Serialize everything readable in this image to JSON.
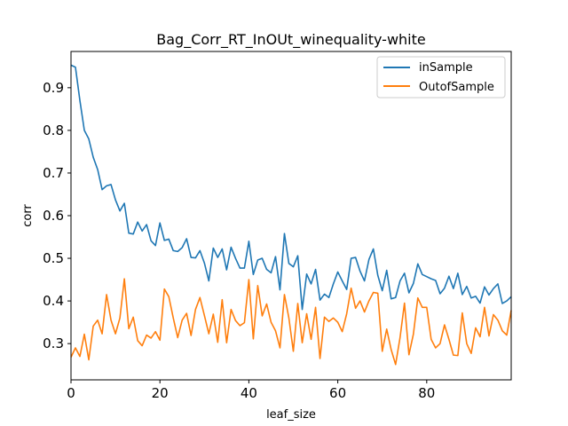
{
  "chart_data": {
    "type": "line",
    "title": "Bag_Corr_RT_InOUt_winequality-white",
    "xlabel": "leaf_size",
    "ylabel": "corr",
    "xlim": [
      0,
      99
    ],
    "ylim": [
      0.215,
      0.985
    ],
    "xticks": [
      0,
      20,
      40,
      60,
      80
    ],
    "yticks": [
      0.3,
      0.4,
      0.5,
      0.6,
      0.7,
      0.8,
      0.9
    ],
    "grid": false,
    "legend_position": "upper right",
    "series": [
      {
        "name": "inSample",
        "color": "#1f77b4",
        "values": [
          0.953,
          0.948,
          0.87,
          0.8,
          0.78,
          0.737,
          0.708,
          0.661,
          0.67,
          0.673,
          0.637,
          0.611,
          0.629,
          0.559,
          0.557,
          0.585,
          0.564,
          0.579,
          0.541,
          0.53,
          0.583,
          0.542,
          0.545,
          0.518,
          0.516,
          0.525,
          0.546,
          0.502,
          0.501,
          0.518,
          0.489,
          0.447,
          0.524,
          0.502,
          0.522,
          0.473,
          0.526,
          0.5,
          0.477,
          0.477,
          0.54,
          0.462,
          0.496,
          0.5,
          0.474,
          0.466,
          0.504,
          0.426,
          0.558,
          0.488,
          0.48,
          0.506,
          0.38,
          0.463,
          0.44,
          0.474,
          0.402,
          0.416,
          0.408,
          0.44,
          0.468,
          0.447,
          0.427,
          0.5,
          0.502,
          0.47,
          0.447,
          0.497,
          0.522,
          0.46,
          0.424,
          0.472,
          0.405,
          0.408,
          0.447,
          0.465,
          0.419,
          0.441,
          0.487,
          0.462,
          0.457,
          0.452,
          0.448,
          0.417,
          0.43,
          0.458,
          0.429,
          0.465,
          0.415,
          0.434,
          0.407,
          0.411,
          0.395,
          0.433,
          0.414,
          0.429,
          0.44,
          0.394,
          0.4,
          0.41
        ]
      },
      {
        "name": "OutofSample",
        "color": "#ff7f0e",
        "values": [
          0.268,
          0.29,
          0.27,
          0.322,
          0.262,
          0.341,
          0.355,
          0.323,
          0.415,
          0.355,
          0.323,
          0.36,
          0.452,
          0.335,
          0.362,
          0.307,
          0.295,
          0.32,
          0.313,
          0.328,
          0.308,
          0.428,
          0.41,
          0.36,
          0.314,
          0.355,
          0.371,
          0.319,
          0.38,
          0.408,
          0.366,
          0.323,
          0.369,
          0.303,
          0.403,
          0.302,
          0.38,
          0.354,
          0.342,
          0.349,
          0.45,
          0.311,
          0.436,
          0.365,
          0.393,
          0.35,
          0.33,
          0.29,
          0.415,
          0.36,
          0.282,
          0.394,
          0.302,
          0.37,
          0.31,
          0.385,
          0.265,
          0.362,
          0.352,
          0.36,
          0.35,
          0.328,
          0.37,
          0.43,
          0.383,
          0.4,
          0.374,
          0.4,
          0.42,
          0.418,
          0.282,
          0.334,
          0.286,
          0.251,
          0.314,
          0.395,
          0.274,
          0.322,
          0.407,
          0.385,
          0.385,
          0.31,
          0.29,
          0.3,
          0.344,
          0.31,
          0.273,
          0.272,
          0.372,
          0.3,
          0.277,
          0.337,
          0.316,
          0.385,
          0.318,
          0.368,
          0.355,
          0.33,
          0.32,
          0.378
        ]
      }
    ]
  }
}
